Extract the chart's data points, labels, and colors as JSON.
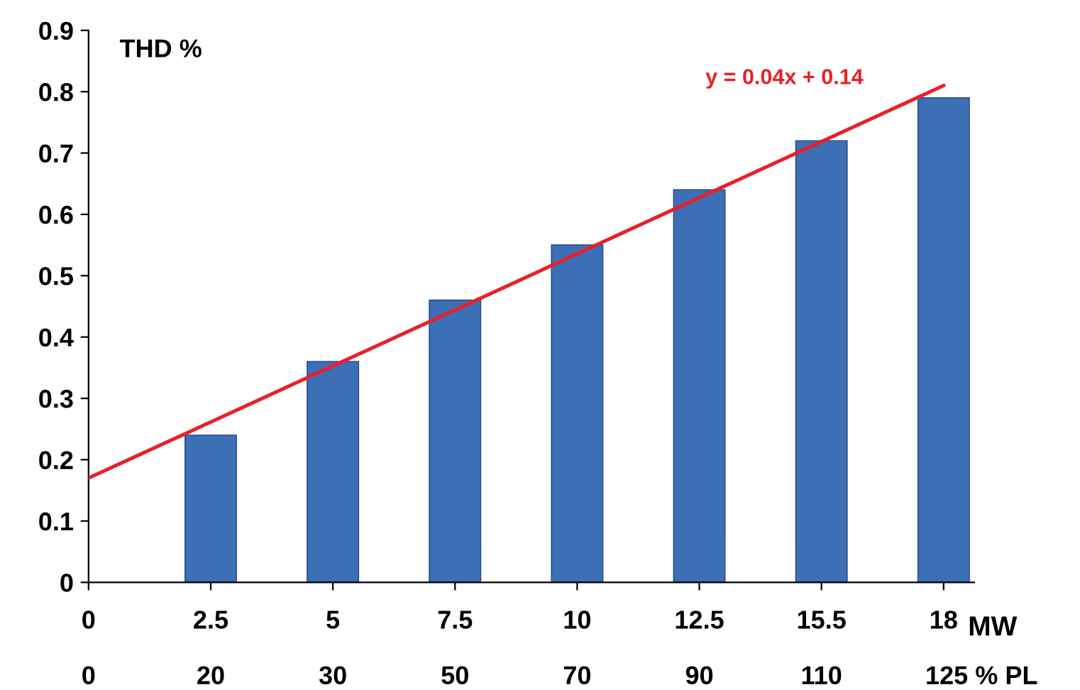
{
  "chart_data": {
    "type": "bar",
    "ylabel": "THD %",
    "categories": [
      "0",
      "2.5",
      "5",
      "7.5",
      "10",
      "12.5",
      "15.5",
      "18"
    ],
    "series": [
      {
        "color": "#3d6fb6",
        "values": [
          null,
          0.24,
          0.36,
          0.46,
          0.55,
          0.64,
          0.72,
          0.79
        ]
      },
      {
        "type": "line",
        "color": "#e8202a",
        "x": [
          "0",
          "18"
        ],
        "values": [
          0.17,
          0.81
        ]
      }
    ],
    "ylim": [
      0,
      0.9
    ],
    "yticks": [
      0,
      0.1,
      0.2,
      0.3,
      0.4,
      0.5,
      0.6,
      0.7,
      0.8,
      0.9
    ],
    "annotations": [
      "y = 0.04x + 0.14",
      "MW",
      "0",
      "20",
      "30",
      "50",
      "70",
      "90",
      "110",
      "125 % PL"
    ],
    "grid": false,
    "legend": false
  }
}
